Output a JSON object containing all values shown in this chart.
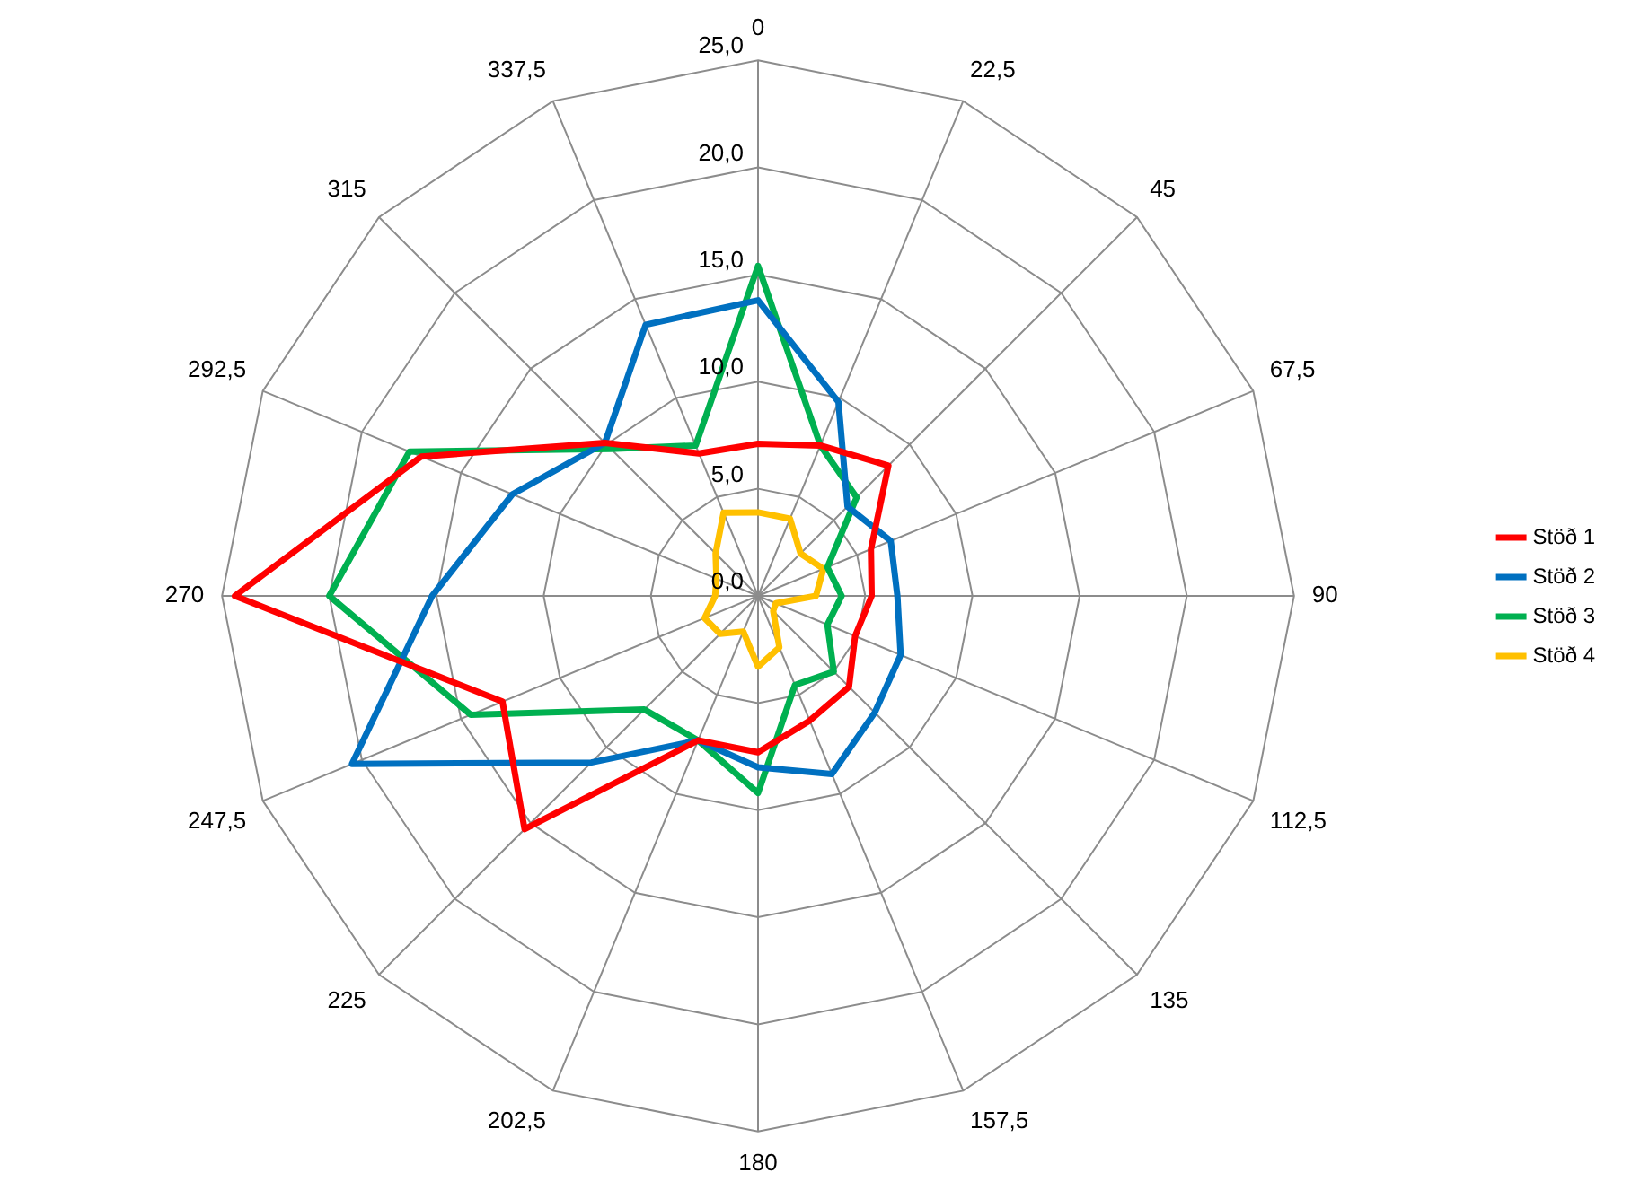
{
  "chart_data": {
    "type": "radar",
    "categories": [
      "0",
      "22,5",
      "45",
      "67,5",
      "90",
      "112,5",
      "135",
      "157,5",
      "180",
      "202,5",
      "225",
      "247,5",
      "270",
      "292,5",
      "315",
      "337,5"
    ],
    "series": [
      {
        "name": "Stöð 1",
        "color": "#ff0000",
        "values": [
          7.1,
          7.6,
          8.6,
          5.7,
          5.3,
          4.9,
          6.0,
          6.3,
          7.3,
          7.3,
          15.4,
          12.9,
          24.4,
          17.0,
          10.1,
          7.2
        ]
      },
      {
        "name": "Stöð 2",
        "color": "#0070c0",
        "values": [
          13.8,
          9.8,
          5.9,
          6.7,
          6.5,
          7.2,
          7.7,
          9.0,
          8.0,
          7.3,
          11.0,
          20.5,
          15.2,
          12.4,
          10.1,
          13.7
        ]
      },
      {
        "name": "Stöð 3",
        "color": "#00b050",
        "values": [
          15.4,
          7.6,
          6.5,
          3.5,
          3.9,
          3.5,
          5.0,
          4.5,
          9.2,
          7.3,
          7.5,
          14.5,
          20.0,
          17.6,
          9.7,
          7.6
        ]
      },
      {
        "name": "Stöð 4",
        "color": "#ffc000",
        "values": [
          3.9,
          3.9,
          2.8,
          3.3,
          2.7,
          0.9,
          1.0,
          2.6,
          3.3,
          1.8,
          2.5,
          2.7,
          2.0,
          2.1,
          2.8,
          4.2
        ]
      }
    ],
    "ylim": [
      0,
      25
    ],
    "yticks": [
      {
        "value": 0,
        "label": "0,0"
      },
      {
        "value": 5,
        "label": "5,0"
      },
      {
        "value": 10,
        "label": "10,0"
      },
      {
        "value": 15,
        "label": "15,0"
      },
      {
        "value": 20,
        "label": "20,0"
      },
      {
        "value": 25,
        "label": "25,0"
      }
    ],
    "grid": true,
    "legend": "right",
    "marker": "none"
  }
}
